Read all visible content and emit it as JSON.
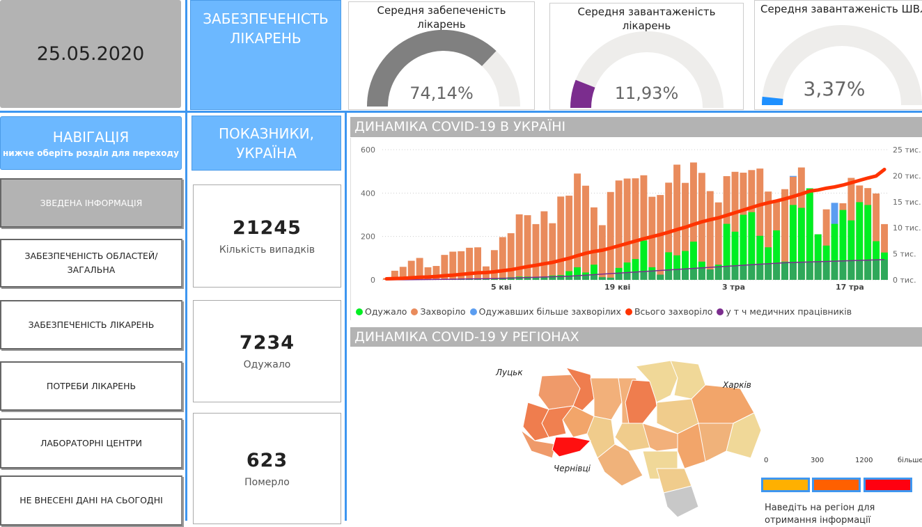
{
  "date": "25.05.2020",
  "header_title": "ЗАБЕЗПЕЧЕНІСТЬ ЛІКАРЕНЬ",
  "gauges": [
    {
      "title": "Середня забепеченість лікарень",
      "value": "74,14%",
      "fraction": 0.7414,
      "color": "#808080"
    },
    {
      "title": "Середня завантаженість лікарень",
      "value": "11,93%",
      "fraction": 0.1193,
      "color": "#7b2d8e"
    },
    {
      "title": "Середня завантаженість ШВЛ",
      "value": "3,37%",
      "fraction": 0.0337,
      "color": "#1e90ff"
    }
  ],
  "nav": {
    "title": "НАВІГАЦІЯ",
    "subtitle": "нижче оберіть розділ для переходу",
    "items": [
      "ЗВЕДЕНА ІНФОРМАЦІЯ",
      "ЗАБЕЗПЕЧЕНІСТЬ ОБЛАСТЕЙ/ ЗАГАЛЬНА",
      "ЗАБЕЗПЕЧЕНІСТЬ ЛІКАРЕНЬ",
      "ПОТРЕБИ ЛІКАРЕНЬ",
      "ЛАБОРАТОРНІ ЦЕНТРИ",
      "НЕ ВНЕСЕНІ ДАНІ НА СЬОГОДНІ"
    ]
  },
  "indicators": {
    "title": "ПОКАЗНИКИ, УКРАЇНА",
    "cards": [
      {
        "value": "21245",
        "label": "Кількість випадків"
      },
      {
        "value": "7234",
        "label": "Одужало"
      },
      {
        "value": "623",
        "label": "Померло"
      }
    ]
  },
  "dynamics_title": "ДИНАМІКА COVID-19 В УКРАЇНІ",
  "regions_title": "ДИНАМІКА COVID-19 У РЕГІОНАХ",
  "chart_data": {
    "type": "bar",
    "x_ticks": [
      "5 кві",
      "19 кві",
      "3 тра",
      "17 тра"
    ],
    "y_left": {
      "ticks": [
        "0",
        "200",
        "400",
        "600"
      ],
      "range": [
        0,
        600
      ]
    },
    "y_right": {
      "ticks": [
        "0 тис.",
        "5 тис.",
        "10 тис.",
        "15 тис.",
        "20 тис.",
        "25 тис."
      ],
      "range": [
        0,
        25000
      ]
    },
    "legend": [
      {
        "label": "Одужало",
        "color": "#00ee22"
      },
      {
        "label": "Захворіло",
        "color": "#e98b5c"
      },
      {
        "label": "Одужавших більше захворілих",
        "color": "#5b9df0"
      },
      {
        "label": "Всього захворіло",
        "color": "#ff3300"
      },
      {
        "label": "у т ч медичних працівників",
        "color": "#7b2d8e"
      }
    ],
    "sick": [
      8,
      42,
      60,
      88,
      101,
      58,
      64,
      115,
      130,
      132,
      148,
      150,
      62,
      137,
      197,
      215,
      302,
      298,
      257,
      316,
      261,
      384,
      388,
      490,
      434,
      334,
      252,
      405,
      458,
      467,
      468,
      482,
      383,
      391,
      448,
      531,
      447,
      541,
      493,
      409,
      357,
      478,
      498,
      494,
      506,
      513,
      407,
      368,
      418,
      475,
      518,
      420,
      210,
      325,
      258,
      353,
      470,
      435,
      423,
      398,
      257
    ],
    "recovered": [
      0,
      0,
      0,
      0,
      0,
      2,
      3,
      3,
      4,
      5,
      6,
      6,
      5,
      8,
      10,
      12,
      15,
      15,
      12,
      15,
      20,
      22,
      40,
      58,
      34,
      70,
      12,
      10,
      55,
      80,
      96,
      181,
      58,
      24,
      127,
      113,
      133,
      176,
      84,
      48,
      70,
      258,
      222,
      300,
      312,
      203,
      150,
      228,
      84,
      345,
      332,
      422,
      210,
      158,
      260,
      322,
      274,
      358,
      345,
      178,
      126
    ],
    "extra_recovered_blue": {
      "index_a": 49,
      "value_a": 4,
      "index_b": 54,
      "value_b": 97
    },
    "total_cumulative": [
      200,
      250,
      300,
      400,
      500,
      550,
      650,
      800,
      900,
      1050,
      1200,
      1350,
      1400,
      1550,
      1750,
      1950,
      2250,
      2550,
      2800,
      3100,
      3350,
      3750,
      4150,
      4650,
      5100,
      5450,
      5700,
      6100,
      6550,
      7000,
      7450,
      7900,
      8300,
      8700,
      9150,
      9650,
      10100,
      10650,
      11150,
      11550,
      11900,
      12400,
      12900,
      13400,
      13900,
      14400,
      14800,
      15150,
      15550,
      16000,
      16500,
      17050,
      17250,
      17600,
      17850,
      18200,
      18650,
      19100,
      19550,
      19950,
      21200
    ],
    "medical_cumulative": [
      0,
      10,
      20,
      30,
      50,
      60,
      80,
      100,
      120,
      150,
      180,
      200,
      220,
      250,
      300,
      350,
      400,
      450,
      500,
      550,
      600,
      650,
      700,
      800,
      900,
      1000,
      1100,
      1200,
      1300,
      1400,
      1500,
      1600,
      1700,
      1800,
      1900,
      2000,
      2100,
      2200,
      2300,
      2400,
      2500,
      2600,
      2700,
      2800,
      2900,
      3000,
      3100,
      3200,
      3300,
      3350,
      3400,
      3450,
      3500,
      3550,
      3600,
      3650,
      3700,
      3750,
      3800,
      3850,
      3900
    ]
  },
  "map": {
    "labels": [
      "Луцьк",
      "Харків",
      "Чернівці"
    ],
    "legend_ticks": [
      "0",
      "300",
      "1200",
      "більше"
    ],
    "legend_colors": [
      "#ffb000",
      "#ff6000",
      "#ff0010"
    ],
    "hint": "Наведіть на регіон для отримання інформації"
  }
}
